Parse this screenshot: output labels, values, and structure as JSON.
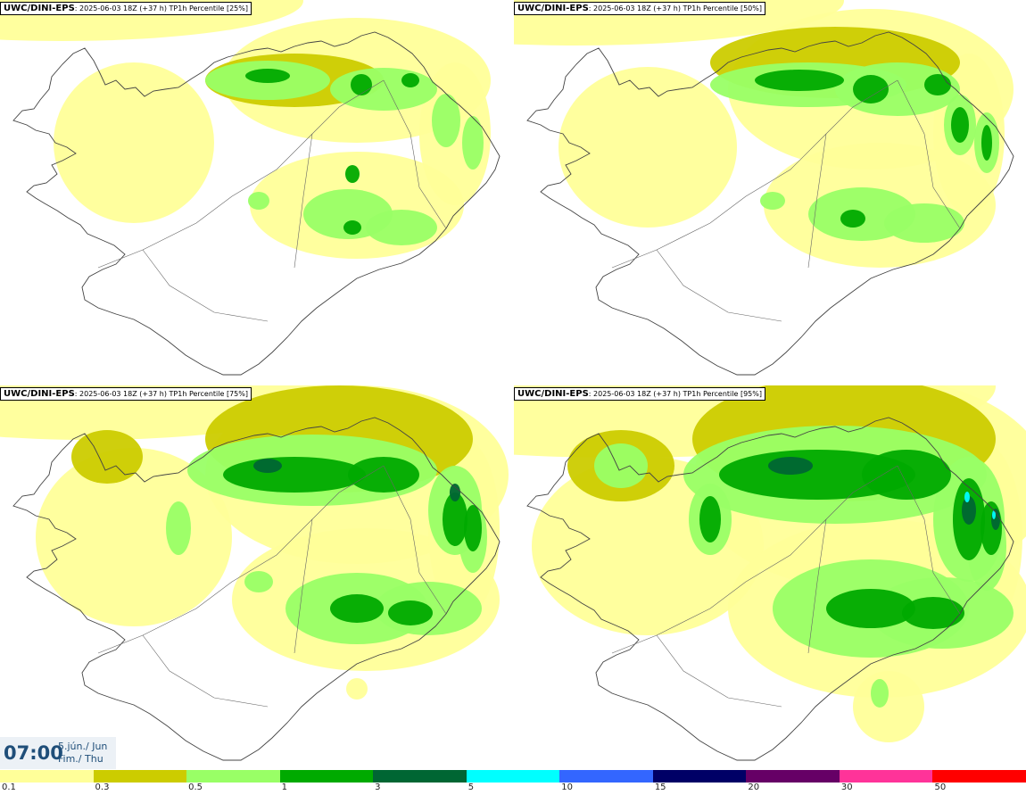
{
  "panels": [
    {
      "model": "UWC/DINI-EPS",
      "info": "2025-06-03 18Z (+37 h) TP1h Percentile [25%]"
    },
    {
      "model": "UWC/DINI-EPS",
      "info": "2025-06-03 18Z (+37 h) TP1h Percentile [50%]"
    },
    {
      "model": "UWC/DINI-EPS",
      "info": "2025-06-03 18Z (+37 h) TP1h Percentile [75%]"
    },
    {
      "model": "UWC/DINI-EPS",
      "info": "2025-06-03 18Z (+37 h) TP1h Percentile [95%]"
    }
  ],
  "valid_time": {
    "time": "07:00",
    "date_line1": "5.jún./ Jun",
    "date_line2": "Fim./ Thu"
  },
  "colorbar": {
    "labels": [
      "0.1",
      "0.3",
      "0.5",
      "1",
      "3",
      "5",
      "10",
      "15",
      "20",
      "30",
      "50"
    ],
    "colors": [
      "#ffff99",
      "#cccc00",
      "#99ff66",
      "#00aa00",
      "#006633",
      "#00ffff",
      "#3366ff",
      "#000066",
      "#660066",
      "#ff3399",
      "#ff0000"
    ]
  },
  "land_color": "#ffffff",
  "coast_color": "#444444"
}
